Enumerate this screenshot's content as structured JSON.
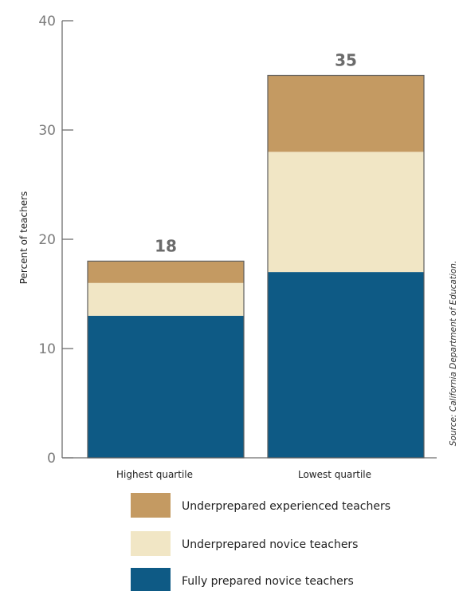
{
  "chart_data": {
    "type": "bar",
    "stacked": true,
    "categories": [
      "Highest quartile",
      "Lowest quartile"
    ],
    "series": [
      {
        "name": "Fully prepared novice teachers",
        "values": [
          13,
          17
        ],
        "color": "#0e5a85"
      },
      {
        "name": "Underprepared novice teachers",
        "values": [
          3,
          11
        ],
        "color": "#f1e6c5"
      },
      {
        "name": "Underprepared experienced teachers",
        "values": [
          2,
          7
        ],
        "color": "#c49a62"
      }
    ],
    "totals": [
      "18",
      "35"
    ],
    "ylabel": "Percent of teachers",
    "ylim": [
      0,
      40
    ],
    "yticks": [
      "0",
      "10",
      "20",
      "30",
      "40"
    ],
    "grid": false,
    "legend_position": "bottom",
    "legend_order": [
      2,
      1,
      0
    ],
    "source_note": "Source: California Department of Education."
  }
}
